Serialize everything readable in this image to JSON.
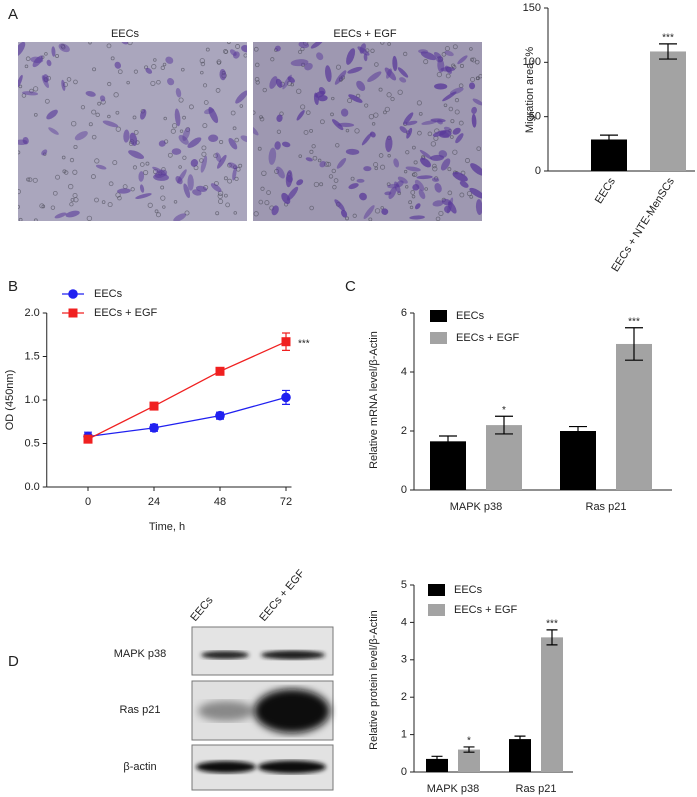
{
  "panel_labels": [
    "A",
    "B",
    "C",
    "D"
  ],
  "micrographs": [
    "EECs",
    "EECs + EGF"
  ],
  "blot": {
    "lanes": [
      "EECs",
      "EECs + EGF"
    ],
    "rows": [
      "MAPK p38",
      "Ras p21",
      "β-actin"
    ]
  },
  "chart_data": [
    {
      "type": "bar",
      "ylabel": "Migration area, %",
      "categories": [
        "EECs",
        "EECs + NTE-MenSCs"
      ],
      "values": [
        29,
        110
      ],
      "errors": [
        4,
        7
      ],
      "colors": [
        "#000000",
        "#a3a3a3"
      ],
      "annotations": [
        null,
        "***"
      ],
      "ylim": [
        0,
        150
      ],
      "yticks": [
        0,
        50,
        100,
        150
      ]
    },
    {
      "type": "line",
      "xlabel": "Time, h",
      "ylabel": "OD (450nm)",
      "x": [
        0,
        24,
        48,
        72
      ],
      "xlim": [
        -15,
        74
      ],
      "xticks": [
        0,
        24,
        48,
        72
      ],
      "ylim": [
        0,
        2
      ],
      "yticks": [
        {
          "value": 0,
          "label": "0.0"
        },
        0.5,
        {
          "value": 1,
          "label": "1.0"
        },
        1.5,
        {
          "value": 2,
          "label": "2.0"
        }
      ],
      "legend": "upper left",
      "annotation": "***",
      "series": [
        {
          "name": "EECs",
          "color": "#2020f0",
          "marker": "circle",
          "values": [
            0.58,
            0.68,
            0.82,
            1.03
          ],
          "errors": [
            0.05,
            0.04,
            0.04,
            0.08
          ]
        },
        {
          "name": "EECs + EGF",
          "color": "#f02020",
          "marker": "square",
          "values": [
            0.55,
            0.93,
            1.33,
            1.67
          ],
          "errors": [
            0.03,
            0.02,
            0.02,
            0.1
          ]
        }
      ]
    },
    {
      "type": "bar",
      "ylabel": "Relative mRNA level/β-Actin",
      "categories": [
        "MAPK p38",
        "Ras p21"
      ],
      "legend": "upper left",
      "ylim": [
        0,
        6
      ],
      "yticks": [
        0,
        2,
        4,
        6
      ],
      "series": [
        {
          "name": "EECs",
          "color": "#000000",
          "values": [
            1.65,
            2.0
          ],
          "errors": [
            0.18,
            0.15
          ]
        },
        {
          "name": "EECs + EGF",
          "color": "#a3a3a3",
          "values": [
            2.2,
            4.95
          ],
          "errors": [
            0.3,
            0.55
          ],
          "annotations": [
            "*",
            "***"
          ]
        }
      ]
    },
    {
      "type": "bar",
      "ylabel": "Relative protein level/β-Actin",
      "categories": [
        "MAPK p38",
        "Ras p21"
      ],
      "legend": "upper left",
      "ylim": [
        0,
        5
      ],
      "yticks": [
        0,
        1,
        2,
        3,
        4,
        5
      ],
      "series": [
        {
          "name": "EECs",
          "color": "#000000",
          "values": [
            0.35,
            0.88
          ],
          "errors": [
            0.07,
            0.08
          ]
        },
        {
          "name": "EECs + EGF",
          "color": "#a3a3a3",
          "values": [
            0.6,
            3.6
          ],
          "errors": [
            0.07,
            0.2
          ],
          "annotations": [
            "*",
            "***"
          ]
        }
      ]
    }
  ]
}
